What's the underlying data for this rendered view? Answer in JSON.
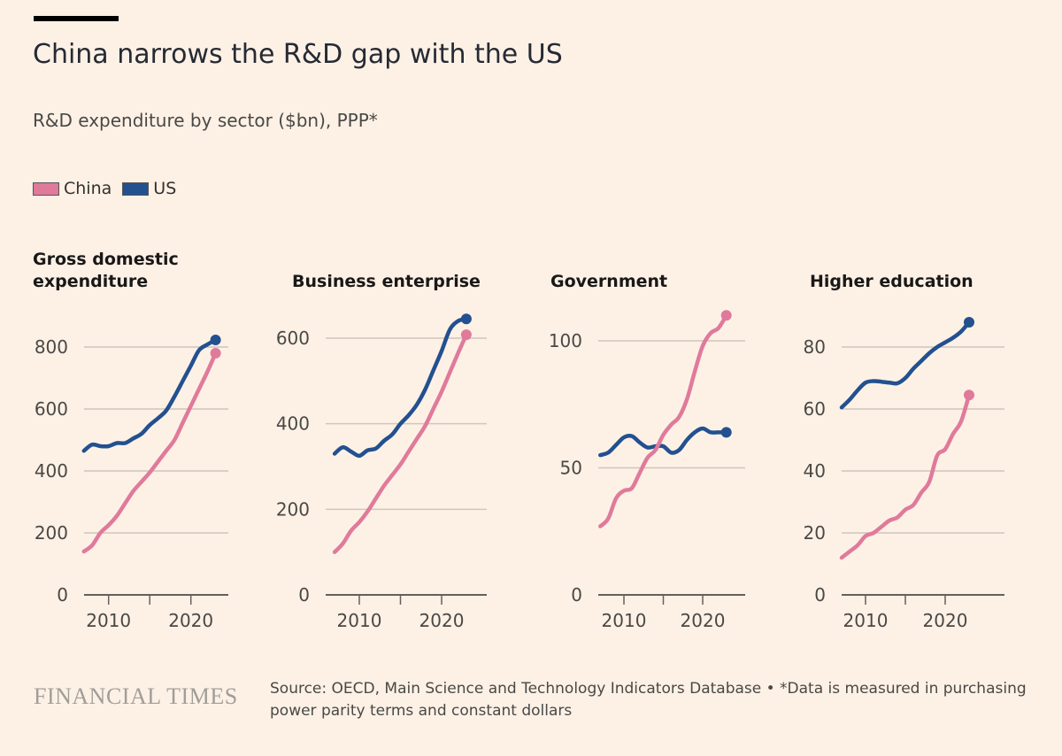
{
  "title": "China narrows the R&D gap with the US",
  "subtitle": "R&D expenditure by sector ($bn), PPP*",
  "legend": [
    {
      "name": "China",
      "color": "#e07a9b"
    },
    {
      "name": "US",
      "color": "#23508f"
    }
  ],
  "footer": {
    "logo": "FINANCIAL TIMES",
    "source": "Source: OECD, Main Science and Technology Indicators Database • *Data is measured in purchasing power parity terms and constant dollars"
  },
  "chart_data": [
    {
      "type": "line",
      "title": "Gross domestic expenditure",
      "x": [
        2007,
        2008,
        2009,
        2010,
        2011,
        2012,
        2013,
        2014,
        2015,
        2016,
        2017,
        2018,
        2019,
        2020,
        2021,
        2022,
        2023
      ],
      "xticks": [
        "2010",
        "2020"
      ],
      "yticks": [
        "0",
        "200",
        "400",
        "600",
        "800"
      ],
      "ylim": [
        0,
        800
      ],
      "grid": true,
      "series": [
        {
          "name": "China",
          "values": [
            140,
            160,
            200,
            225,
            255,
            295,
            335,
            365,
            395,
            430,
            465,
            500,
            555,
            610,
            665,
            720,
            780
          ]
        },
        {
          "name": "US",
          "values": [
            465,
            485,
            480,
            480,
            490,
            490,
            505,
            520,
            548,
            570,
            595,
            640,
            690,
            740,
            790,
            808,
            823
          ]
        }
      ]
    },
    {
      "type": "line",
      "title": "Business enterprise",
      "x": [
        2007,
        2008,
        2009,
        2010,
        2011,
        2012,
        2013,
        2014,
        2015,
        2016,
        2017,
        2018,
        2019,
        2020,
        2021,
        2022,
        2023
      ],
      "xticks": [
        "2010",
        "2020"
      ],
      "yticks": [
        "0",
        "200",
        "400",
        "600"
      ],
      "ylim": [
        0,
        600
      ],
      "grid": true,
      "series": [
        {
          "name": "China",
          "values": [
            100,
            120,
            150,
            170,
            195,
            225,
            255,
            280,
            305,
            335,
            365,
            395,
            435,
            475,
            520,
            565,
            608
          ]
        },
        {
          "name": "US",
          "values": [
            330,
            345,
            335,
            325,
            338,
            342,
            360,
            375,
            400,
            420,
            445,
            480,
            525,
            570,
            620,
            640,
            645
          ]
        }
      ]
    },
    {
      "type": "line",
      "title": "Government",
      "x": [
        2007,
        2008,
        2009,
        2010,
        2011,
        2012,
        2013,
        2014,
        2015,
        2016,
        2017,
        2018,
        2019,
        2020,
        2021,
        2022,
        2023
      ],
      "xticks": [
        "2010",
        "2020"
      ],
      "yticks": [
        "0",
        "50",
        "100"
      ],
      "ylim": [
        0,
        100
      ],
      "grid": true,
      "series": [
        {
          "name": "China",
          "values": [
            27,
            30,
            38,
            41,
            42,
            48,
            54,
            57,
            63,
            67,
            70,
            77,
            88,
            98,
            103,
            105,
            110
          ]
        },
        {
          "name": "US",
          "values": [
            55,
            56,
            59,
            62,
            62.5,
            60,
            58,
            58.5,
            58.5,
            56,
            57,
            61,
            64,
            65.5,
            64,
            64,
            64
          ]
        }
      ]
    },
    {
      "type": "line",
      "title": "Higher education",
      "x": [
        2007,
        2008,
        2009,
        2010,
        2011,
        2012,
        2013,
        2014,
        2015,
        2016,
        2017,
        2018,
        2019,
        2020,
        2021,
        2022,
        2023
      ],
      "xticks": [
        "2010",
        "2020"
      ],
      "yticks": [
        "0",
        "20",
        "40",
        "60",
        "80"
      ],
      "ylim": [
        0,
        80
      ],
      "grid": true,
      "series": [
        {
          "name": "China",
          "values": [
            12,
            14,
            16,
            19,
            20,
            22,
            24,
            25,
            27.5,
            29,
            33,
            36.5,
            45,
            47,
            52,
            56,
            64.5
          ]
        },
        {
          "name": "US",
          "values": [
            60.5,
            63,
            66,
            68.5,
            69,
            68.8,
            68.5,
            68.3,
            70,
            73,
            75.5,
            78,
            80,
            81.5,
            83,
            85,
            88
          ]
        }
      ]
    }
  ]
}
